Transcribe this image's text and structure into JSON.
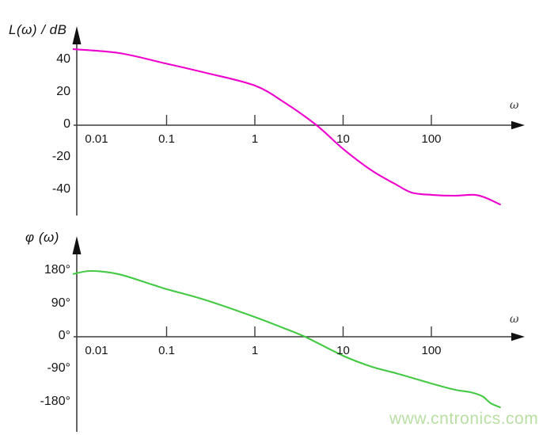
{
  "watermark": {
    "text": "www.cntronics.com",
    "color": "#b9dfa4"
  },
  "colors": {
    "magnitude_curve": "#ee00cc",
    "phase_curve": "#44c944",
    "axis": "#3d3d3d",
    "arrow": "#111111",
    "label": "#1a1a1a"
  },
  "chart_data": [
    {
      "type": "line",
      "title": "L(ω) / dB",
      "xlabel": "ω",
      "ylabel": "L(ω)/dB",
      "x_scale": "log",
      "grid": false,
      "legend": "none",
      "xlim": [
        0.0088,
        700
      ],
      "ylim": [
        -50,
        50
      ],
      "x_ticks": [
        {
          "label": "0.01",
          "value": 0.01
        },
        {
          "label": "0.1",
          "value": 0.1
        },
        {
          "label": "1",
          "value": 1
        },
        {
          "label": "10",
          "value": 10
        },
        {
          "label": "100",
          "value": 100
        }
      ],
      "y_ticks": [
        {
          "label": "40",
          "value": 40
        },
        {
          "label": "20",
          "value": 20
        },
        {
          "label": "0",
          "value": 0
        },
        {
          "label": "-20",
          "value": -20
        },
        {
          "label": "-40",
          "value": -40
        }
      ],
      "series": [
        {
          "name": "magnitude",
          "color": "#ee00cc",
          "x": [
            0.0088,
            0.029,
            0.089,
            0.28,
            1,
            2.2,
            5,
            10,
            21,
            40,
            60,
            100,
            185,
            310,
            420,
            600
          ],
          "y": [
            46.8,
            44.4,
            38.5,
            32.2,
            24.4,
            13.7,
            0,
            -14.6,
            -27.8,
            -36.6,
            -41.5,
            -42.9,
            -43.4,
            -42.9,
            -44.9,
            -48.8
          ]
        }
      ]
    },
    {
      "type": "line",
      "title": "φ (ω)",
      "xlabel": "ω",
      "ylabel": "φ(ω)",
      "x_scale": "log",
      "grid": false,
      "legend": "none",
      "xlim": [
        0.0088,
        700
      ],
      "ylim": [
        -200,
        200
      ],
      "x_ticks": [
        {
          "label": "0.01",
          "value": 0.01
        },
        {
          "label": "0.1",
          "value": 0.1
        },
        {
          "label": "1",
          "value": 1
        },
        {
          "label": "10",
          "value": 10
        },
        {
          "label": "100",
          "value": 100
        }
      ],
      "y_ticks": [
        {
          "label": "180°",
          "value": 180
        },
        {
          "label": "90°",
          "value": 90
        },
        {
          "label": "0°",
          "value": 0
        },
        {
          "label": "-90°",
          "value": -90
        },
        {
          "label": "-180°",
          "value": -180
        }
      ],
      "series": [
        {
          "name": "phase",
          "color": "#44c944",
          "x": [
            0.0088,
            0.014,
            0.029,
            0.089,
            0.28,
            1,
            2,
            3.7,
            10,
            21,
            40,
            100,
            185,
            280,
            380,
            470,
            600
          ],
          "y": [
            172,
            180,
            171,
            134,
            100,
            54,
            26,
            0,
            -52,
            -82,
            -100,
            -128,
            -145,
            -152,
            -163,
            -182,
            -193
          ]
        }
      ]
    }
  ]
}
